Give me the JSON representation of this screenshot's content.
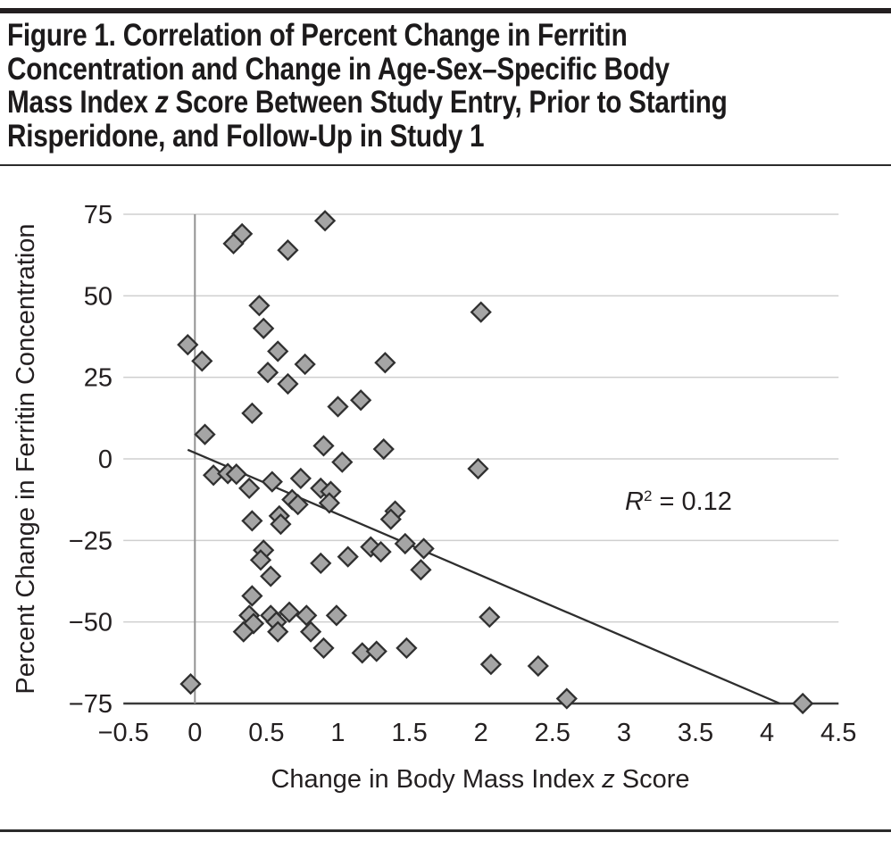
{
  "title": {
    "lines": [
      {
        "text": "Figure 1. Correlation of Percent Change in Ferritin"
      },
      {
        "text": "Concentration and Change in Age-Sex–Specific Body"
      },
      {
        "pre": "Mass Index ",
        "italic": "z",
        "post": " Score Between Study Entry, Prior to Starting"
      },
      {
        "text": "Risperidone, and Follow-Up in Study 1"
      }
    ]
  },
  "style": {
    "marker_fill": "#a5a5a5",
    "marker_stroke": "#303030",
    "grid_color": "#cfcfcf",
    "axis_color": "#3a3a3a",
    "zero_line_color": "#939393",
    "trend_color": "#2e2e2e",
    "text_color": "#231f20",
    "rule_color": "#231f20"
  },
  "chart_data": {
    "type": "scatter",
    "title": "Figure 1. Correlation of Percent Change in Ferritin Concentration and Change in Age-Sex–Specific Body Mass Index z Score Between Study Entry, Prior to Starting Risperidone, and Follow-Up in Study 1",
    "xlabel": "Change in Body Mass Index z Score",
    "xlabel_parts": [
      "Change in Body Mass Index ",
      "z",
      " Score"
    ],
    "ylabel": "Percent Change in Ferritin Concentration",
    "xlim": [
      -0.5,
      4.5
    ],
    "ylim": [
      -75,
      75
    ],
    "x_ticks": [
      -0.5,
      0,
      0.5,
      1,
      1.5,
      2,
      2.5,
      3,
      3.5,
      4,
      4.5
    ],
    "y_ticks": [
      75,
      50,
      25,
      0,
      -25,
      -50,
      -75
    ],
    "grid": "horizontal-only",
    "legend": "none",
    "annotation": {
      "r": "R",
      "sup": "2",
      "rest": " = 0.12",
      "text": "R2 = 0.12"
    },
    "trendline": {
      "x1": -0.05,
      "y1": 2.8,
      "x2": 4.09,
      "y2": -75,
      "r_squared": 0.12
    },
    "points": [
      [
        0.91,
        73
      ],
      [
        0.33,
        69
      ],
      [
        0.27,
        66
      ],
      [
        0.65,
        64
      ],
      [
        0.45,
        47
      ],
      [
        0.48,
        40
      ],
      [
        -0.05,
        35
      ],
      [
        0.58,
        33
      ],
      [
        0.05,
        30
      ],
      [
        0.77,
        29
      ],
      [
        1.33,
        29.5
      ],
      [
        0.51,
        26.5
      ],
      [
        0.65,
        23
      ],
      [
        1.16,
        18
      ],
      [
        1.0,
        16
      ],
      [
        0.4,
        14
      ],
      [
        0.07,
        7.5
      ],
      [
        0.9,
        4
      ],
      [
        1.32,
        3
      ],
      [
        2.0,
        45
      ],
      [
        1.03,
        -1
      ],
      [
        1.98,
        -3
      ],
      [
        0.13,
        -5
      ],
      [
        0.23,
        -4.5
      ],
      [
        0.29,
        -4.7
      ],
      [
        0.38,
        -9
      ],
      [
        0.54,
        -7
      ],
      [
        0.74,
        -6
      ],
      [
        0.88,
        -9
      ],
      [
        0.95,
        -10
      ],
      [
        0.68,
        -12.5
      ],
      [
        0.72,
        -14
      ],
      [
        0.94,
        -13.5
      ],
      [
        0.4,
        -19
      ],
      [
        0.59,
        -17.5
      ],
      [
        0.6,
        -20
      ],
      [
        1.4,
        -16
      ],
      [
        1.37,
        -18.5
      ],
      [
        0.48,
        -28
      ],
      [
        0.46,
        -31
      ],
      [
        0.53,
        -36
      ],
      [
        0.88,
        -32
      ],
      [
        1.07,
        -30
      ],
      [
        1.23,
        -27
      ],
      [
        1.3,
        -28.5
      ],
      [
        1.47,
        -26
      ],
      [
        1.6,
        -27.5
      ],
      [
        1.58,
        -34
      ],
      [
        0.4,
        -42
      ],
      [
        0.38,
        -48
      ],
      [
        0.41,
        -50.5
      ],
      [
        0.34,
        -53
      ],
      [
        0.53,
        -48
      ],
      [
        0.57,
        -50
      ],
      [
        0.58,
        -53
      ],
      [
        0.66,
        -47
      ],
      [
        0.78,
        -48
      ],
      [
        0.81,
        -53
      ],
      [
        0.99,
        -48
      ],
      [
        0.9,
        -58
      ],
      [
        1.17,
        -59.5
      ],
      [
        1.27,
        -59
      ],
      [
        1.48,
        -58
      ],
      [
        2.06,
        -48.5
      ],
      [
        2.07,
        -63
      ],
      [
        2.4,
        -63.5
      ],
      [
        2.6,
        -73.5
      ],
      [
        -0.03,
        -69
      ],
      [
        4.25,
        -75
      ]
    ]
  }
}
